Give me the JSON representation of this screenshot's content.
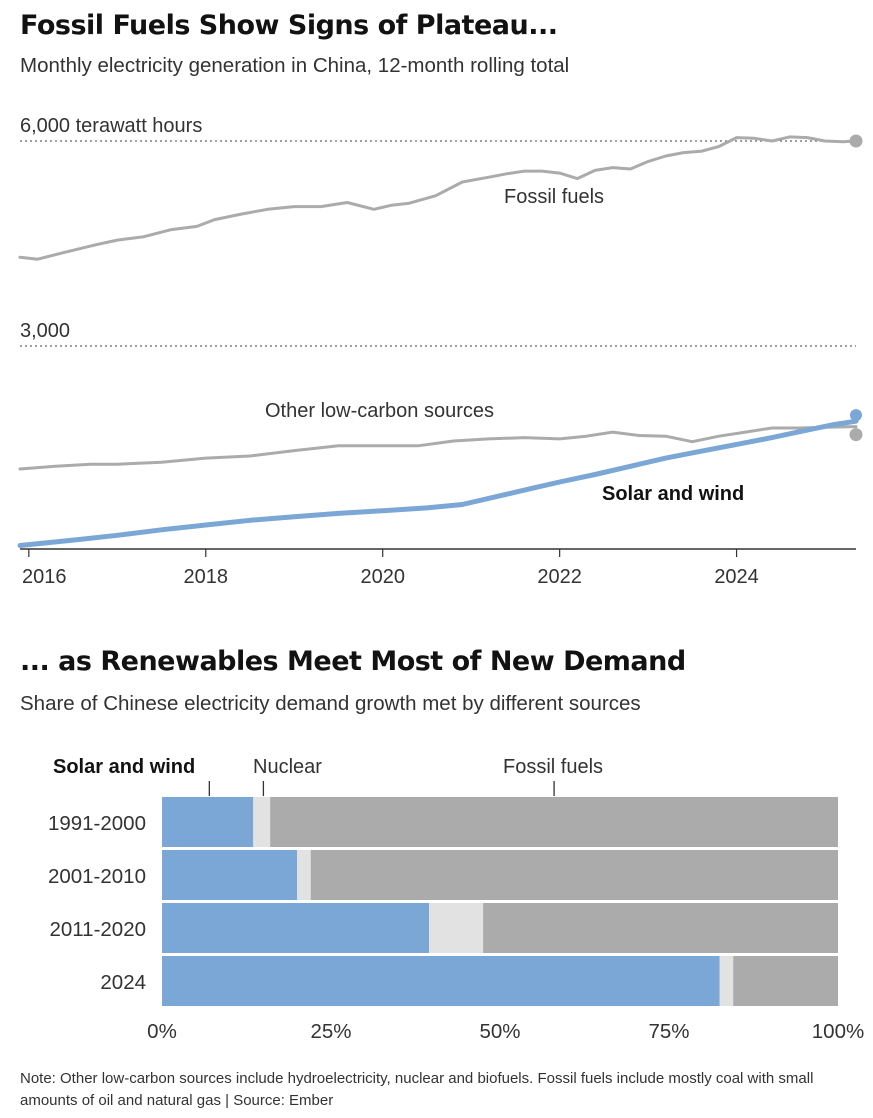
{
  "colors": {
    "fossil": "#ababab",
    "other": "#ababab",
    "solar": "#7ba7d6",
    "nuclear": "#e2e2e2",
    "text": "#121212",
    "muted": "#333333"
  },
  "top": {
    "title": "Fossil Fuels Show Signs of Plateau...",
    "subtitle": "Monthly electricity generation in China, 12-month rolling total"
  },
  "bottom": {
    "title": "... as Renewables Meet Most of New Demand",
    "subtitle": "Share of Chinese electricity demand growth met by different sources"
  },
  "note": "Note: Other low-carbon sources include hydroelectricity, nuclear and biofuels. Fossil fuels include mostly coal with small amounts of oil and natural gas  |  Source: Ember",
  "chart_data": [
    {
      "type": "line",
      "title": "Fossil Fuels Show Signs of Plateau...",
      "ylabel": "terawatt hours",
      "ylim": [
        0,
        6000
      ],
      "xlim": [
        2015.9,
        2025.35
      ],
      "x_ticks": [
        2016,
        2018,
        2020,
        2022,
        2024
      ],
      "x_tick_labels": [
        "2016",
        "2018",
        "2020",
        "2022",
        "2024"
      ],
      "y_gridlines": [
        {
          "value": 6000,
          "label": "6,000 terawatt hours"
        },
        {
          "value": 3000,
          "label": "3,000"
        }
      ],
      "series": [
        {
          "name": "Fossil fuels",
          "key": "fossil",
          "x": [
            2015.9,
            2016.1,
            2016.4,
            2016.75,
            2017.0,
            2017.3,
            2017.6,
            2017.9,
            2018.1,
            2018.4,
            2018.7,
            2019.0,
            2019.3,
            2019.6,
            2019.9,
            2020.1,
            2020.3,
            2020.6,
            2020.9,
            2021.2,
            2021.4,
            2021.6,
            2021.8,
            2022.0,
            2022.2,
            2022.4,
            2022.6,
            2022.8,
            2023.0,
            2023.2,
            2023.4,
            2023.6,
            2023.8,
            2024.0,
            2024.2,
            2024.4,
            2024.6,
            2024.8,
            2025.0,
            2025.2,
            2025.35
          ],
          "values": [
            4300,
            4270,
            4370,
            4480,
            4550,
            4600,
            4700,
            4750,
            4850,
            4930,
            5000,
            5040,
            5040,
            5100,
            5000,
            5060,
            5090,
            5200,
            5400,
            5470,
            5520,
            5560,
            5560,
            5530,
            5450,
            5570,
            5610,
            5590,
            5700,
            5780,
            5830,
            5850,
            5920,
            6050,
            6040,
            6000,
            6060,
            6050,
            6000,
            5990,
            6000
          ]
        },
        {
          "name": "Other low-carbon sources",
          "key": "other",
          "x": [
            2015.9,
            2016.3,
            2016.7,
            2017.0,
            2017.5,
            2018.0,
            2018.5,
            2019.0,
            2019.5,
            2020.0,
            2020.4,
            2020.8,
            2021.2,
            2021.6,
            2022.0,
            2022.3,
            2022.6,
            2022.9,
            2023.2,
            2023.5,
            2023.8,
            2024.1,
            2024.4,
            2024.7,
            2025.0,
            2025.35
          ],
          "values": [
            1200,
            1240,
            1270,
            1270,
            1300,
            1360,
            1390,
            1470,
            1540,
            1540,
            1540,
            1610,
            1640,
            1660,
            1640,
            1680,
            1740,
            1690,
            1680,
            1600,
            1680,
            1740,
            1800,
            1800,
            1810,
            1820
          ]
        },
        {
          "name": "Solar and wind",
          "key": "solar",
          "x": [
            2015.9,
            2016.5,
            2017.0,
            2017.5,
            2018.0,
            2018.5,
            2019.0,
            2019.5,
            2020.0,
            2020.5,
            2020.9,
            2021.3,
            2021.7,
            2022.0,
            2022.4,
            2022.8,
            2023.2,
            2023.6,
            2024.0,
            2024.4,
            2024.8,
            2025.1,
            2025.35
          ],
          "values": [
            80,
            160,
            230,
            310,
            380,
            450,
            500,
            550,
            590,
            630,
            680,
            800,
            920,
            1010,
            1120,
            1240,
            1360,
            1460,
            1560,
            1660,
            1770,
            1850,
            1900
          ]
        }
      ]
    },
    {
      "type": "bar",
      "orientation": "horizontal",
      "stacked": true,
      "title": "... as Renewables Meet Most of New Demand",
      "categories": [
        "1991-2000",
        "2001-2010",
        "2011-2020",
        "2024"
      ],
      "series": [
        {
          "name": "Solar and wind",
          "key": "solar",
          "values": [
            13.5,
            20,
            39.5,
            82.5
          ]
        },
        {
          "name": "Nuclear",
          "key": "nuclear",
          "values": [
            2.5,
            2,
            8,
            2
          ]
        },
        {
          "name": "Fossil fuels",
          "key": "fossil",
          "values": [
            84,
            78,
            52.5,
            15.5
          ]
        }
      ],
      "legend_marker_positions": [
        7,
        15,
        58
      ],
      "xlim": [
        0,
        100
      ],
      "x_ticks": [
        0,
        25,
        50,
        75,
        100
      ],
      "x_tick_labels": [
        "0%",
        "25%",
        "50%",
        "75%",
        "100%"
      ]
    }
  ]
}
